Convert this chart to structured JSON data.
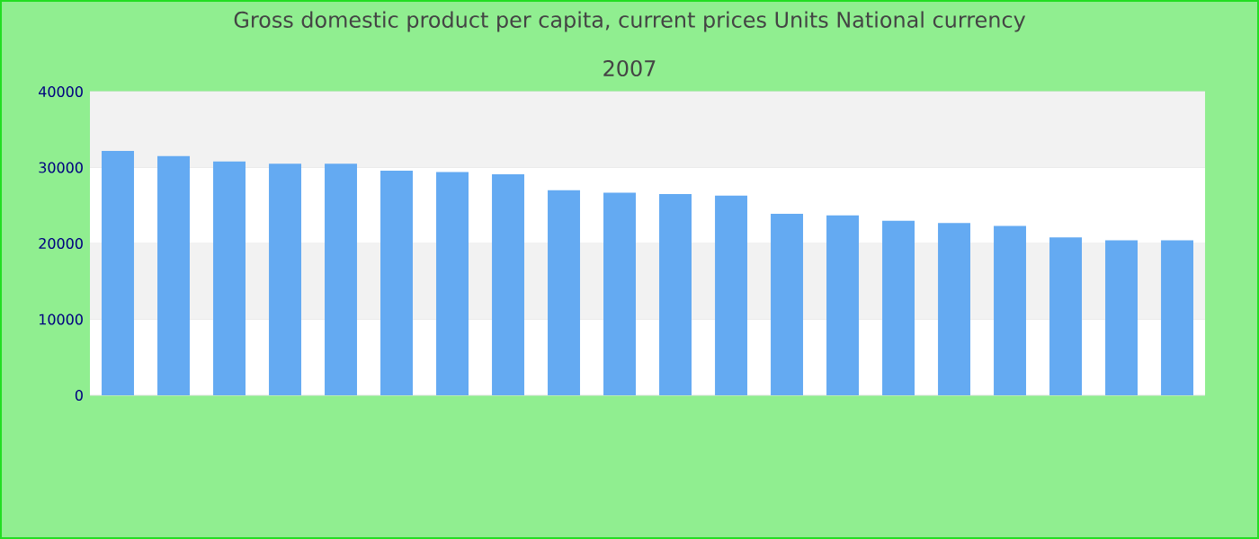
{
  "chart_data": {
    "type": "bar",
    "title": "Gross domestic product per capita, current prices Units National currency",
    "subtitle": "2007",
    "categories": [
      null,
      null,
      null,
      null,
      null,
      null,
      null,
      null,
      null,
      null,
      null,
      null,
      null,
      null,
      null,
      null,
      null,
      null,
      null,
      null
    ],
    "values": [
      32200,
      31500,
      30800,
      30500,
      30500,
      29600,
      29400,
      29100,
      27000,
      26700,
      26500,
      26300,
      23900,
      23700,
      23000,
      22700,
      22300,
      20800,
      20400,
      20400
    ],
    "color": "#64aaf2",
    "ylim": [
      0,
      40000
    ],
    "yticks": [
      0,
      10000,
      20000,
      30000,
      40000
    ],
    "grid": "y"
  }
}
